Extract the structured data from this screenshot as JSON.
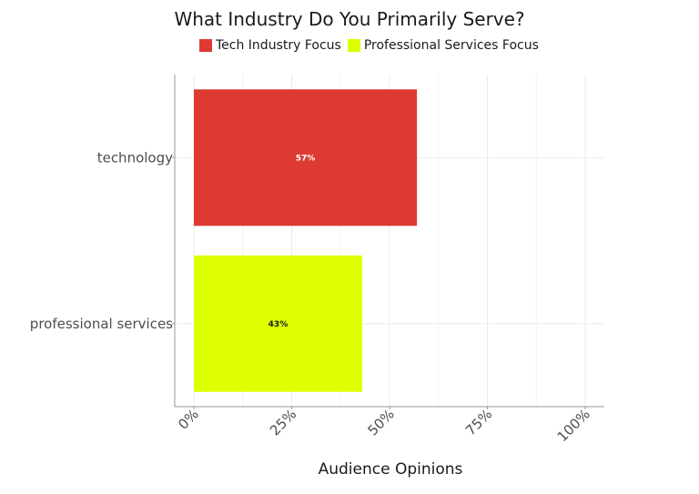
{
  "chart_data": {
    "type": "bar",
    "orientation": "horizontal",
    "title": "What Industry Do You Primarily Serve?",
    "xlabel": "Audience Opinions",
    "ylabel": "",
    "xlim": [
      0,
      100
    ],
    "x_ticks": [
      "0%",
      "25%",
      "50%",
      "75%",
      "100%"
    ],
    "categories": [
      "technology",
      "professional services"
    ],
    "series": [
      {
        "name": "Tech Industry Focus",
        "category": "technology",
        "value": 57,
        "label": "57%",
        "color": "#dd3a34"
      },
      {
        "name": "Professional Services Focus",
        "category": "professional services",
        "value": 43,
        "label": "43%",
        "color": "#ddff00"
      }
    ],
    "legend_position": "top",
    "grid": true
  }
}
